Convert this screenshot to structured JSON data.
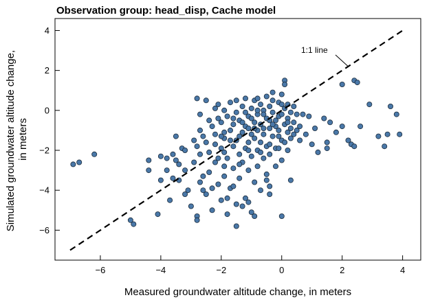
{
  "chart_data": {
    "type": "scatter",
    "title": "Observation group: head_disp, Cache model",
    "xlabel": "Measured groundwater altitude change, in meters",
    "ylabel_lines": [
      "Simulated groundwater altitude change,",
      "in meters"
    ],
    "xlim": [
      -7.5,
      4.6
    ],
    "ylim": [
      -7.5,
      4.6
    ],
    "xticks": [
      -6,
      -4,
      -2,
      0,
      2,
      4
    ],
    "yticks": [
      -6,
      -4,
      -2,
      0,
      2,
      4
    ],
    "xtick_labels": [
      "−6",
      "−4",
      "−2",
      "0",
      "2",
      "4"
    ],
    "ytick_labels": [
      "−6",
      "−4",
      "−2",
      "0",
      "2",
      "4"
    ],
    "grid": false,
    "point_color": "#4a78a8",
    "point_edge_color": "#1a2a3a",
    "one_to_one_line": {
      "label": "1:1 line",
      "from": [
        -7,
        -7
      ],
      "to": [
        4,
        4
      ]
    },
    "series": [
      {
        "points": [
          [
            -6.9,
            -2.7
          ],
          [
            -6.7,
            -2.6
          ],
          [
            -6.2,
            -2.2
          ],
          [
            -5.0,
            -5.5
          ],
          [
            -4.9,
            -5.7
          ],
          [
            -4.4,
            -2.5
          ],
          [
            -4.4,
            -3.0
          ],
          [
            -4.1,
            -5.2
          ],
          [
            -4.0,
            -2.3
          ],
          [
            -4.0,
            -3.5
          ],
          [
            -3.8,
            -2.4
          ],
          [
            -3.8,
            -3.0
          ],
          [
            -3.7,
            -4.5
          ],
          [
            -3.6,
            -2.2
          ],
          [
            -3.6,
            -3.4
          ],
          [
            -3.5,
            -1.3
          ],
          [
            -3.5,
            -2.5
          ],
          [
            -3.4,
            -2.7
          ],
          [
            -3.3,
            -1.9
          ],
          [
            -3.2,
            -2.0
          ],
          [
            -3.2,
            -3.0
          ],
          [
            -3.1,
            -4.0
          ],
          [
            -3.0,
            -4.8
          ],
          [
            -2.9,
            -1.5
          ],
          [
            -2.9,
            -2.6
          ],
          [
            -2.8,
            -5.3
          ],
          [
            -2.8,
            -5.5
          ],
          [
            -2.8,
            0.6
          ],
          [
            -2.7,
            -1.0
          ],
          [
            -2.7,
            -2.2
          ],
          [
            -2.7,
            -0.2
          ],
          [
            -2.6,
            -3.3
          ],
          [
            -2.5,
            -1.6
          ],
          [
            -2.5,
            0.5
          ],
          [
            -2.5,
            -4.2
          ],
          [
            -2.4,
            -2.1
          ],
          [
            -2.4,
            -3.1
          ],
          [
            -2.3,
            -0.8
          ],
          [
            -2.3,
            -5.0
          ],
          [
            -2.2,
            -1.2
          ],
          [
            -2.2,
            -2.6
          ],
          [
            -2.2,
            0.1
          ],
          [
            -2.1,
            -0.4
          ],
          [
            -2.1,
            -3.7
          ],
          [
            -2.0,
            -1.9
          ],
          [
            -2.0,
            -0.6
          ],
          [
            -2.0,
            -4.5
          ],
          [
            -1.9,
            -2.8
          ],
          [
            -1.9,
            0.0
          ],
          [
            -1.9,
            -1.4
          ],
          [
            -1.9,
            -3.3
          ],
          [
            -1.8,
            -0.3
          ],
          [
            -1.8,
            -2.4
          ],
          [
            -1.8,
            -5.2
          ],
          [
            -1.7,
            -1.0
          ],
          [
            -1.7,
            0.4
          ],
          [
            -1.7,
            -3.9
          ],
          [
            -1.6,
            -1.8
          ],
          [
            -1.6,
            -0.7
          ],
          [
            -1.6,
            -2.9
          ],
          [
            -1.5,
            -0.1
          ],
          [
            -1.5,
            -1.5
          ],
          [
            -1.5,
            -4.7
          ],
          [
            -1.5,
            -5.8
          ],
          [
            -1.4,
            -0.5
          ],
          [
            -1.4,
            -2.2
          ],
          [
            -1.4,
            -3.4
          ],
          [
            -1.3,
            0.2
          ],
          [
            -1.3,
            -1.1
          ],
          [
            -1.3,
            -2.6
          ],
          [
            -1.2,
            -0.8
          ],
          [
            -1.2,
            -1.9
          ],
          [
            -1.2,
            0.6
          ],
          [
            -1.2,
            -4.4
          ],
          [
            -1.1,
            -0.3
          ],
          [
            -1.1,
            -1.6
          ],
          [
            -1.1,
            -3.0
          ],
          [
            -1.0,
            0.1
          ],
          [
            -1.0,
            -1.2
          ],
          [
            -1.0,
            -2.3
          ],
          [
            -1.0,
            -5.1
          ],
          [
            -0.9,
            -0.6
          ],
          [
            -0.9,
            -1.4
          ],
          [
            -0.9,
            0.5
          ],
          [
            -0.9,
            -3.6
          ],
          [
            -0.8,
            -0.2
          ],
          [
            -0.8,
            -1.0
          ],
          [
            -0.8,
            -2.0
          ],
          [
            -0.8,
            -2.8
          ],
          [
            -0.7,
            0.3
          ],
          [
            -0.7,
            -0.7
          ],
          [
            -0.7,
            -1.6
          ],
          [
            -0.7,
            -4.0
          ],
          [
            -0.6,
            0.0
          ],
          [
            -0.6,
            -1.2
          ],
          [
            -0.6,
            -2.4
          ],
          [
            -0.5,
            0.7
          ],
          [
            -0.5,
            -0.4
          ],
          [
            -0.5,
            -1.8
          ],
          [
            -0.5,
            -3.2
          ],
          [
            -0.4,
            0.2
          ],
          [
            -0.4,
            -0.9
          ],
          [
            -0.4,
            -2.2
          ],
          [
            -0.4,
            -3.8
          ],
          [
            -0.3,
            -0.1
          ],
          [
            -0.3,
            -1.3
          ],
          [
            -0.3,
            0.9
          ],
          [
            -0.2,
            -0.5
          ],
          [
            -0.2,
            -1.9
          ],
          [
            -0.2,
            -2.8
          ],
          [
            -0.1,
            0.4
          ],
          [
            -0.1,
            -0.3
          ],
          [
            -0.1,
            -1.0
          ],
          [
            0.0,
            0.8
          ],
          [
            0.0,
            -0.2
          ],
          [
            0.0,
            -1.5
          ],
          [
            0.0,
            -2.5
          ],
          [
            0.0,
            -5.3
          ],
          [
            0.1,
            1.5
          ],
          [
            0.1,
            1.3
          ],
          [
            0.1,
            0.1
          ],
          [
            0.1,
            -0.7
          ],
          [
            0.2,
            0.3
          ],
          [
            0.2,
            -1.1
          ],
          [
            0.2,
            -0.4
          ],
          [
            0.3,
            -0.1
          ],
          [
            0.3,
            -1.4
          ],
          [
            0.4,
            -0.6
          ],
          [
            0.5,
            -0.2
          ],
          [
            0.5,
            -1.0
          ],
          [
            0.6,
            -0.8
          ],
          [
            0.8,
            -1.2
          ],
          [
            0.9,
            -0.3
          ],
          [
            1.0,
            -1.7
          ],
          [
            1.1,
            -0.9
          ],
          [
            1.2,
            -2.1
          ],
          [
            1.4,
            -0.4
          ],
          [
            1.5,
            -1.6
          ],
          [
            1.6,
            -0.6
          ],
          [
            1.8,
            -1.1
          ],
          [
            2.0,
            -0.8
          ],
          [
            2.2,
            -1.5
          ],
          [
            2.3,
            -1.7
          ],
          [
            2.4,
            1.5
          ],
          [
            2.5,
            1.4
          ],
          [
            2.6,
            -0.8
          ],
          [
            2.9,
            0.3
          ],
          [
            3.2,
            -1.3
          ],
          [
            3.5,
            -1.2
          ],
          [
            3.6,
            0.2
          ],
          [
            3.8,
            -0.2
          ],
          [
            3.9,
            -1.2
          ],
          [
            3.4,
            -1.8
          ],
          [
            2.4,
            -1.8
          ],
          [
            1.5,
            -1.9
          ],
          [
            2.0,
            1.3
          ],
          [
            -3.2,
            -4.2
          ],
          [
            -2.6,
            -4.0
          ],
          [
            -3.4,
            -3.5
          ],
          [
            -1.3,
            -4.8
          ],
          [
            -0.5,
            -3.5
          ],
          [
            -0.9,
            -5.3
          ],
          [
            -1.1,
            -4.6
          ],
          [
            0.3,
            -3.5
          ],
          [
            -2.3,
            -3.9
          ],
          [
            -2.1,
            -2.4
          ],
          [
            -1.6,
            -3.8
          ],
          [
            -2.7,
            -3.6
          ],
          [
            -1.8,
            -4.4
          ],
          [
            -0.4,
            -4.2
          ],
          [
            -2.2,
            -1.7
          ],
          [
            -2.4,
            -0.5
          ],
          [
            -1.9,
            -1.1
          ],
          [
            -1.6,
            -0.4
          ],
          [
            -1.3,
            -0.6
          ],
          [
            -1.2,
            -0.1
          ],
          [
            -1.0,
            -0.4
          ],
          [
            -0.8,
            0.0
          ],
          [
            -0.6,
            -0.2
          ],
          [
            -0.4,
            -0.5
          ],
          [
            -0.2,
            -0.8
          ],
          [
            -0.1,
            -1.3
          ],
          [
            0.1,
            -1.6
          ],
          [
            0.3,
            -0.9
          ],
          [
            0.4,
            -1.2
          ],
          [
            -2.0,
            -1.3
          ],
          [
            -1.7,
            -1.5
          ],
          [
            -1.4,
            -1.3
          ],
          [
            -1.1,
            -0.9
          ],
          [
            -0.9,
            -0.9
          ],
          [
            -0.6,
            -0.9
          ],
          [
            -0.3,
            -0.7
          ],
          [
            0.2,
            -0.6
          ],
          [
            0.6,
            -1.5
          ],
          [
            0.7,
            -0.2
          ],
          [
            -2.1,
            0.3
          ],
          [
            -1.5,
            0.5
          ],
          [
            -0.8,
            0.6
          ],
          [
            -0.3,
            0.5
          ],
          [
            0.0,
            0.3
          ],
          [
            0.4,
            0.2
          ],
          [
            -1.9,
            -2.1
          ],
          [
            -1.4,
            -2.7
          ],
          [
            -1.1,
            -2.0
          ],
          [
            -0.7,
            -2.1
          ],
          [
            -0.4,
            -1.7
          ],
          [
            -0.1,
            -1.9
          ],
          [
            0.2,
            -2.0
          ],
          [
            -2.6,
            -1.3
          ],
          [
            -2.8,
            -1.8
          ]
        ]
      }
    ]
  }
}
